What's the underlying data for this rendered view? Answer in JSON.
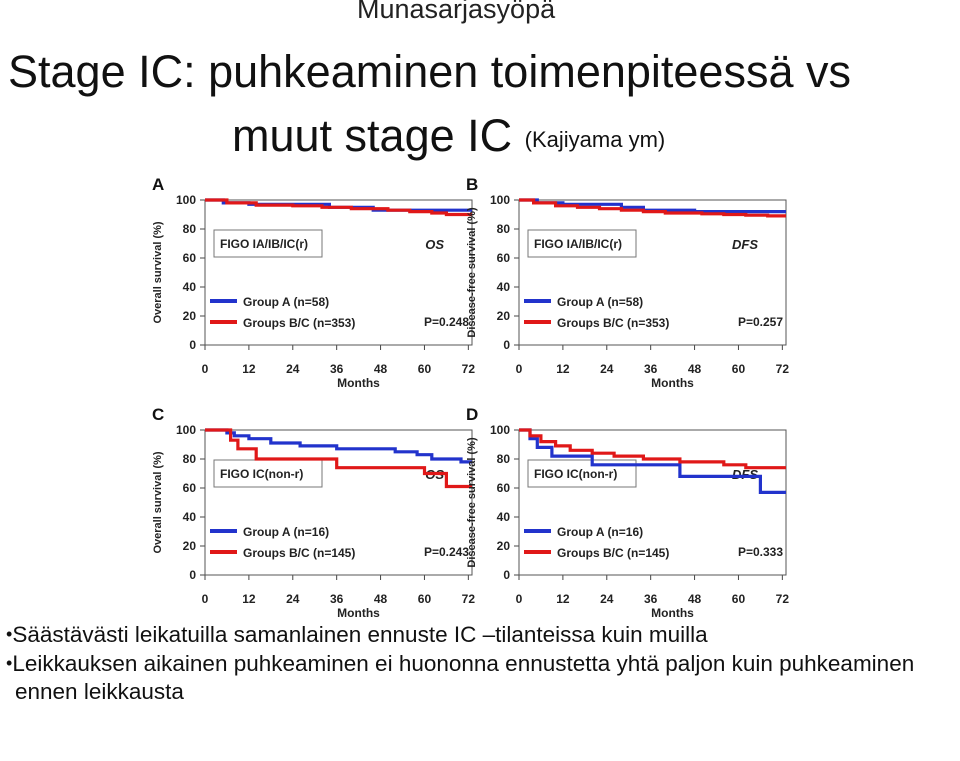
{
  "header": {
    "subject": "Munasarjasyöpä",
    "title_line1": "Stage IC: puhkeaminen toimenpiteessä vs",
    "title_line2": "muut stage IC",
    "title_source": "(Kajiyama ym)"
  },
  "chart_data": [
    {
      "type": "line",
      "panel_letter": "A",
      "xlabel": "Months",
      "ylabel": "Overall survival (%)",
      "x_ticks": [
        "0",
        "12",
        "24",
        "36",
        "48",
        "60",
        "72"
      ],
      "y_ticks": [
        "0",
        "20",
        "40",
        "60",
        "80",
        "100"
      ],
      "xlim": [
        0,
        73
      ],
      "ylim": [
        0,
        100
      ],
      "box_label": "FIGO IA/IB/IC(r)",
      "endpoint": "OS",
      "p_value": "P=0.248",
      "series": [
        {
          "name": "Group A (n=58)",
          "color": "#2233cc",
          "x": [
            0,
            5,
            5,
            12,
            12,
            34,
            34,
            46,
            46,
            73
          ],
          "y": [
            100,
            100,
            98,
            98,
            97,
            97,
            95,
            95,
            93,
            93
          ]
        },
        {
          "name": "Groups B/C (n=353)",
          "color": "#e01818",
          "x": [
            0,
            6,
            6,
            14,
            14,
            24,
            24,
            32,
            32,
            40,
            40,
            50,
            50,
            56,
            56,
            62,
            62,
            66,
            66,
            73
          ],
          "y": [
            100,
            100,
            98,
            98,
            96.5,
            96.5,
            96,
            96,
            95,
            95,
            94,
            94,
            93,
            93,
            92,
            92,
            91,
            91,
            90,
            90
          ]
        }
      ]
    },
    {
      "type": "line",
      "panel_letter": "B",
      "xlabel": "Months",
      "ylabel": "Disease-free survival (%)",
      "x_ticks": [
        "0",
        "12",
        "24",
        "36",
        "48",
        "60",
        "72"
      ],
      "y_ticks": [
        "0",
        "20",
        "40",
        "60",
        "80",
        "100"
      ],
      "xlim": [
        0,
        73
      ],
      "ylim": [
        0,
        100
      ],
      "box_label": "FIGO IA/IB/IC(r)",
      "endpoint": "DFS",
      "p_value": "P=0.257",
      "series": [
        {
          "name": "Group A (n=58)",
          "color": "#2233cc",
          "x": [
            0,
            5,
            5,
            12,
            12,
            28,
            28,
            34,
            34,
            48,
            48,
            73
          ],
          "y": [
            100,
            100,
            98,
            98,
            97,
            97,
            95,
            95,
            93,
            93,
            92,
            92
          ]
        },
        {
          "name": "Groups B/C (n=353)",
          "color": "#e01818",
          "x": [
            0,
            4,
            4,
            10,
            10,
            16,
            16,
            22,
            22,
            28,
            28,
            34,
            34,
            40,
            40,
            50,
            50,
            56,
            56,
            62,
            62,
            68,
            68,
            73
          ],
          "y": [
            100,
            100,
            98,
            98,
            96,
            96,
            95,
            95,
            94,
            94,
            93,
            93,
            92,
            92,
            91,
            91,
            90.5,
            90.5,
            90,
            90,
            89.5,
            89.5,
            89,
            89
          ]
        }
      ]
    },
    {
      "type": "line",
      "panel_letter": "C",
      "xlabel": "Months",
      "ylabel": "Overall survival (%)",
      "x_ticks": [
        "0",
        "12",
        "24",
        "36",
        "48",
        "60",
        "72"
      ],
      "y_ticks": [
        "0",
        "20",
        "40",
        "60",
        "80",
        "100"
      ],
      "xlim": [
        0,
        73
      ],
      "ylim": [
        0,
        100
      ],
      "box_label": "FIGO IC(non-r)",
      "endpoint": "OS",
      "p_value": "P=0.243",
      "series": [
        {
          "name": "Group A (n=16)",
          "color": "#2233cc",
          "x": [
            0,
            6,
            6,
            8,
            8,
            12,
            12,
            18,
            18,
            26,
            26,
            36,
            36,
            52,
            52,
            58,
            58,
            62,
            62,
            70,
            70,
            73
          ],
          "y": [
            100,
            100,
            98,
            98,
            96,
            96,
            94,
            94,
            91,
            91,
            89,
            89,
            87,
            87,
            85,
            85,
            83,
            83,
            80,
            80,
            78,
            78
          ]
        },
        {
          "name": "Groups B/C (n=145)",
          "color": "#e01818",
          "x": [
            0,
            7,
            7,
            9,
            9,
            14,
            14,
            36,
            36,
            60,
            60,
            66,
            66,
            73
          ],
          "y": [
            100,
            100,
            93,
            93,
            87,
            87,
            80,
            80,
            74,
            74,
            70,
            70,
            61,
            61
          ]
        }
      ]
    },
    {
      "type": "line",
      "panel_letter": "D",
      "xlabel": "Months",
      "ylabel": "Disease-free survival (%)",
      "x_ticks": [
        "0",
        "12",
        "24",
        "36",
        "48",
        "60",
        "72"
      ],
      "y_ticks": [
        "0",
        "20",
        "40",
        "60",
        "80",
        "100"
      ],
      "xlim": [
        0,
        73
      ],
      "ylim": [
        0,
        100
      ],
      "box_label": "FIGO IC(non-r)",
      "endpoint": "DFS",
      "p_value": "P=0.333",
      "series": [
        {
          "name": "Group A (n=16)",
          "color": "#2233cc",
          "x": [
            0,
            3,
            3,
            5,
            5,
            9,
            9,
            20,
            20,
            44,
            44,
            66,
            66,
            73
          ],
          "y": [
            100,
            100,
            94,
            94,
            88,
            88,
            82,
            82,
            76,
            76,
            68,
            68,
            57,
            57
          ]
        },
        {
          "name": "Groups B/C (n=145)",
          "color": "#e01818",
          "x": [
            0,
            3,
            3,
            6,
            6,
            10,
            10,
            14,
            14,
            20,
            20,
            26,
            26,
            34,
            34,
            44,
            44,
            56,
            56,
            62,
            62,
            73
          ],
          "y": [
            100,
            100,
            96,
            96,
            92,
            92,
            89,
            89,
            86,
            86,
            84,
            84,
            82,
            82,
            80,
            80,
            78,
            78,
            76,
            76,
            74,
            74
          ]
        }
      ]
    }
  ],
  "bullets": [
    {
      "text": "Säästävästi leikatuilla samanlainen ennuste IC –tilanteissa kuin muilla"
    },
    {
      "text": "Leikkauksen aikainen puhkeaminen ei huononna ennustetta yhtä paljon kuin puhkeaminen ennen leikkausta"
    }
  ]
}
